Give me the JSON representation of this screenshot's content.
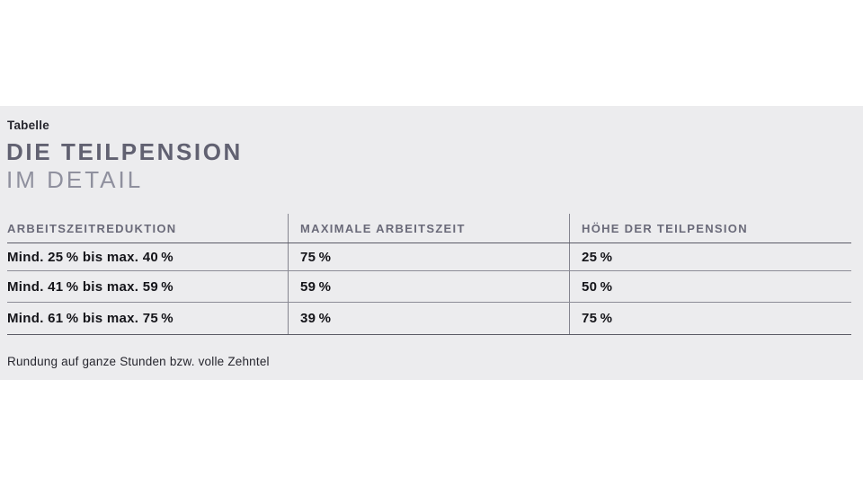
{
  "panel": {
    "eyebrow": "Tabelle",
    "title_line1": "DIE TEILPENSION",
    "title_line2": "IM DETAIL",
    "footnote": "Rundung auf ganze Stunden bzw. volle Zehntel"
  },
  "table": {
    "columns": [
      "ARBEITSZEITREDUKTION",
      "MAXIMALE ARBEITSZEIT",
      "HÖHE DER TEILPENSION"
    ],
    "rows": [
      {
        "cells": [
          "Mind. 25 % bis max. 40 %",
          "75 %",
          "25 %"
        ]
      },
      {
        "cells": [
          "Mind. 41 % bis max. 59 %",
          "59 %",
          "50 %"
        ]
      },
      {
        "cells": [
          "Mind. 61 % bis max. 75 %",
          "39 %",
          "75 %"
        ]
      }
    ]
  },
  "colors": {
    "panel_bg": "#ececee",
    "title_main": "#616171",
    "title_sub": "#8f909e",
    "column_header_text": "#6a6a79",
    "cell_text": "#141419",
    "strong_line": "#5b5b66",
    "light_line": "#8c8c96"
  }
}
